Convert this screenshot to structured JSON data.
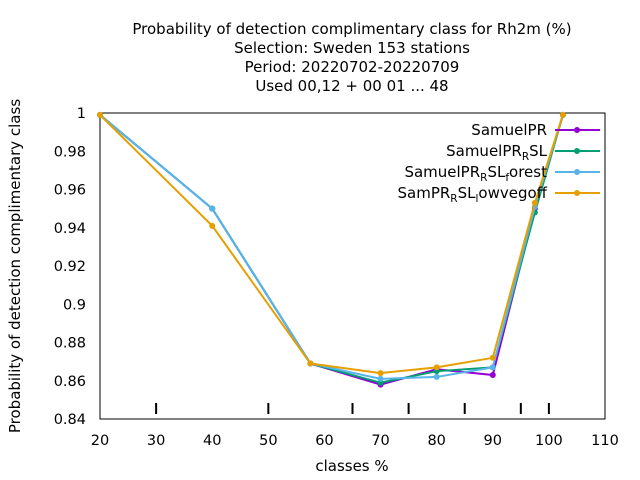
{
  "chart_data": {
    "type": "line",
    "title_lines": [
      "Probability of detection complimentary class  for Rh2m (%)",
      "Selection: Sweden    153 stations",
      "Period: 20220702-20220709",
      "Used  00,12  + 00 01 ... 48"
    ],
    "xlabel": "classes %",
    "ylabel": "Probability of detection complimentary class",
    "xlim": [
      20,
      110
    ],
    "ylim": [
      0.84,
      1.0
    ],
    "xticks": [
      20,
      30,
      40,
      50,
      60,
      70,
      80,
      90,
      100,
      110
    ],
    "yticks": [
      "0.84",
      "0.86",
      "0.88",
      "0.9",
      "0.92",
      "0.94",
      "0.96",
      "0.98",
      "1"
    ],
    "minor_marks_x": [
      30,
      50,
      65,
      75,
      85,
      95,
      100
    ],
    "legend_position": "top-right",
    "series": [
      {
        "name_main": "SamuelPR",
        "name_subs": [],
        "color": "#9400d3",
        "marker": "circle",
        "x": [
          20,
          40,
          57.5,
          70,
          80,
          90,
          97.5,
          102.5
        ],
        "y": [
          0.999,
          0.95,
          0.869,
          0.858,
          0.866,
          0.863,
          0.95,
          0.999
        ]
      },
      {
        "name_main": "SamuelPR",
        "name_subs": [
          [
            "R",
            "SL"
          ]
        ],
        "color": "#009e73",
        "marker": "circle",
        "x": [
          20,
          40,
          57.5,
          70,
          80,
          90,
          97.5,
          102.5
        ],
        "y": [
          0.999,
          0.95,
          0.869,
          0.859,
          0.865,
          0.867,
          0.948,
          0.999
        ]
      },
      {
        "name_main": "SamuelPR",
        "name_subs": [
          [
            "R",
            "SL"
          ],
          [
            "f",
            "orest"
          ]
        ],
        "color": "#56b4e9",
        "marker": "circle",
        "x": [
          20,
          40,
          57.5,
          70,
          80,
          90,
          97.5,
          102.5
        ],
        "y": [
          0.999,
          0.95,
          0.869,
          0.861,
          0.862,
          0.867,
          0.951,
          0.999
        ]
      },
      {
        "name_main": "SamPR",
        "name_subs": [
          [
            "R",
            "SL"
          ],
          [
            "l",
            "owvegoff"
          ]
        ],
        "color": "#e69f00",
        "marker": "circle",
        "x": [
          20,
          40,
          57.5,
          70,
          80,
          90,
          97.5,
          102.5
        ],
        "y": [
          0.999,
          0.941,
          0.869,
          0.864,
          0.867,
          0.872,
          0.953,
          0.999
        ]
      }
    ]
  }
}
